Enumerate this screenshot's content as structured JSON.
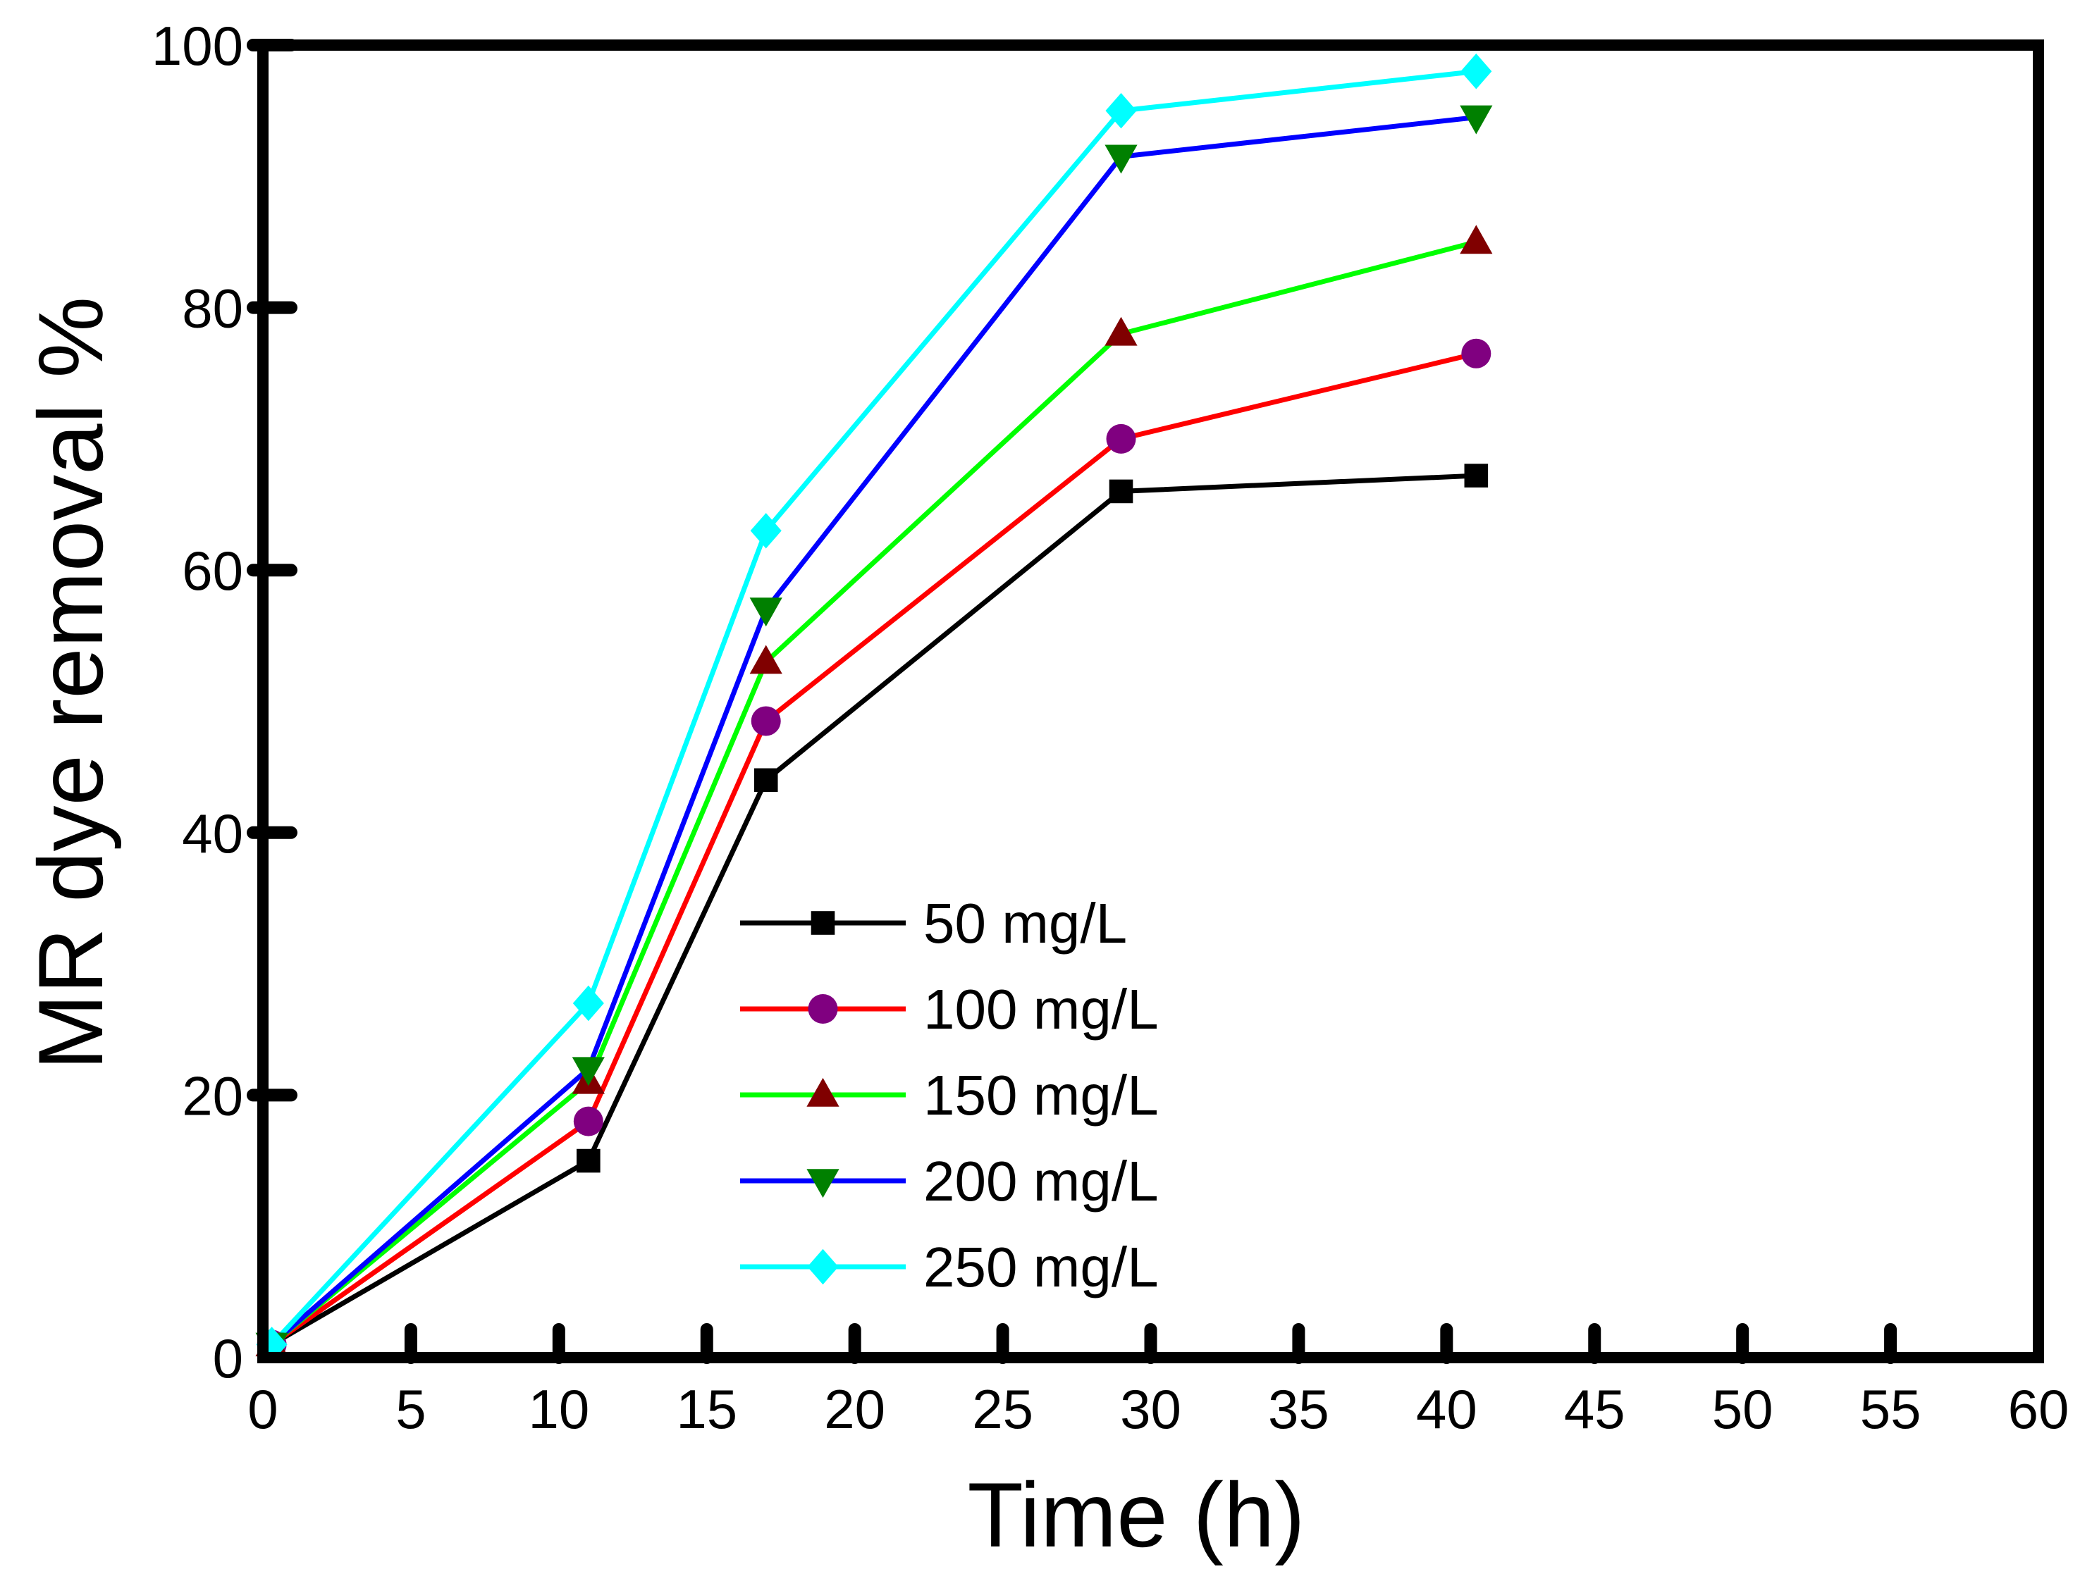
{
  "chart_data": {
    "type": "line",
    "title": "",
    "xlabel": "Time (h)",
    "ylabel": "MR dye removal %",
    "xlim": [
      0,
      60
    ],
    "ylim": [
      0,
      100
    ],
    "xticks": [
      0,
      5,
      10,
      15,
      20,
      25,
      30,
      35,
      40,
      45,
      50,
      55,
      60
    ],
    "yticks": [
      0,
      20,
      40,
      60,
      80,
      100
    ],
    "grid": false,
    "legend_position": "center-left",
    "x": [
      0.3,
      11,
      17,
      29,
      41
    ],
    "series": [
      {
        "name": "50 mg/L",
        "values": [
          1,
          15,
          44,
          66,
          67.2
        ],
        "line_color": "#000000",
        "marker": "square",
        "marker_color": "#000000"
      },
      {
        "name": "100 mg/L",
        "values": [
          1,
          18,
          48.5,
          70,
          76.5
        ],
        "line_color": "#ff0000",
        "marker": "circle",
        "marker_color": "#800080"
      },
      {
        "name": "150 mg/L",
        "values": [
          1,
          21,
          53,
          78,
          85
        ],
        "line_color": "#00ff00",
        "marker": "triangle-up",
        "marker_color": "#800000"
      },
      {
        "name": "200 mg/L",
        "values": [
          1,
          22,
          57,
          91.5,
          94.5
        ],
        "line_color": "#0000ff",
        "marker": "triangle-down",
        "marker_color": "#008000"
      },
      {
        "name": "250 mg/L",
        "values": [
          1,
          27,
          63,
          95,
          98
        ],
        "line_color": "#00ffff",
        "marker": "diamond",
        "marker_color": "#00ffff"
      }
    ]
  }
}
